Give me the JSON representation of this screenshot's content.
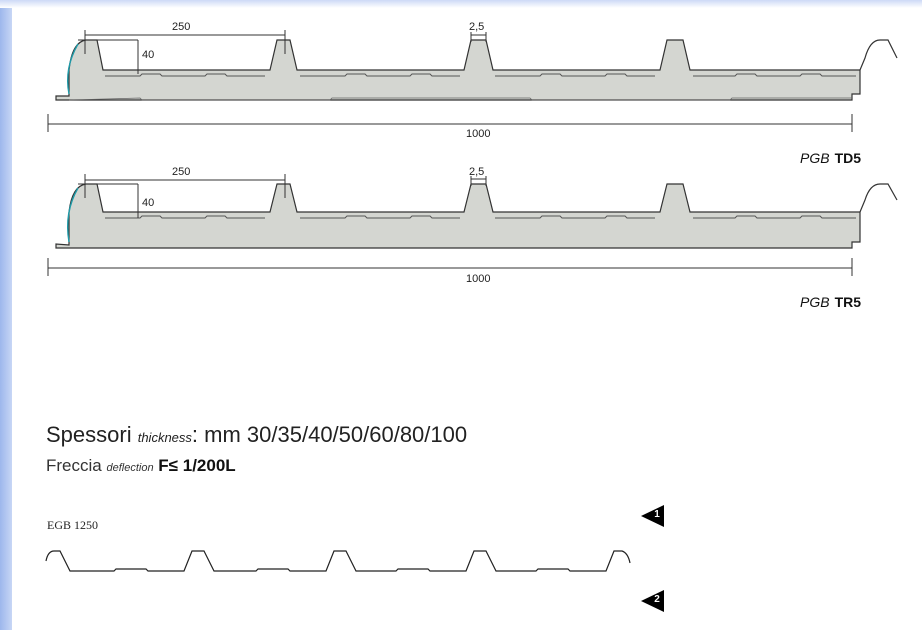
{
  "panel_td5": {
    "dim_pitch": "250",
    "dim_height": "40",
    "dim_rib": "2,5",
    "dim_width": "1000",
    "brand": "PGB",
    "model": "TD5"
  },
  "panel_tr5": {
    "dim_pitch": "250",
    "dim_height": "40",
    "dim_rib": "2,5",
    "dim_width": "1000",
    "brand": "PGB",
    "model": "TR5"
  },
  "specs": {
    "spessori_label": "Spessori",
    "thickness_label": "thickness",
    "thickness_value": ": mm 30/35/40/50/60/80/100",
    "freccia_label": "Freccia",
    "deflection_label": "deflection",
    "deflection_value": "F≤ 1/200L"
  },
  "egb": {
    "label": "EGB 1250"
  },
  "nav": {
    "btn1": "1",
    "btn2": "2"
  },
  "colors": {
    "panel_fill": "#d4d6d1",
    "line": "#333333",
    "edge_accent": "#1e9aa8",
    "left_band": "#9db7ec"
  }
}
